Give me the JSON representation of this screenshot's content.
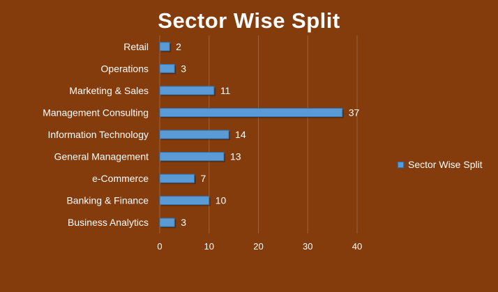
{
  "chart_data": {
    "type": "bar",
    "orientation": "horizontal",
    "title": "Sector Wise Split",
    "categories": [
      "Business Analytics",
      "Banking & Finance",
      "e-Commerce",
      "General Management",
      "Information Technology",
      "Management Consulting",
      "Marketing & Sales",
      "Operations",
      "Retail"
    ],
    "series": [
      {
        "name": "Sector Wise Split",
        "values": [
          3,
          10,
          7,
          13,
          14,
          37,
          11,
          3,
          2
        ]
      }
    ],
    "xlim": [
      0,
      40
    ],
    "xticks": [
      0,
      10,
      20,
      30,
      40
    ],
    "grid": true,
    "legend": "right",
    "colors": {
      "background": "#843C0C",
      "bar": "#5B9BD5",
      "bar_border": "#2E75B6",
      "text": "#FFFFFF",
      "grid": "#A0613A"
    }
  }
}
